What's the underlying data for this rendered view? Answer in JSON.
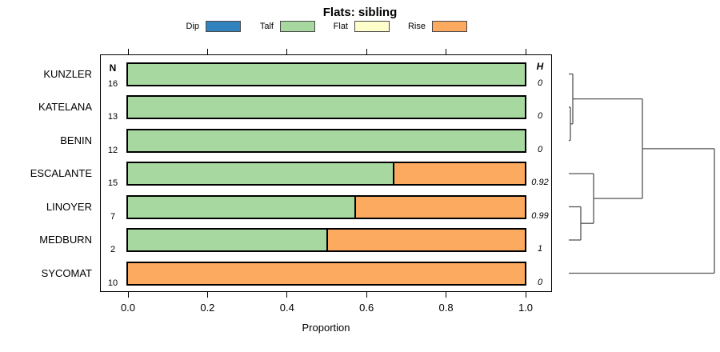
{
  "chart_data": {
    "type": "bar",
    "orientation": "horizontal-stacked",
    "title": "Flats: sibling",
    "xlabel": "Proportion",
    "xlim": [
      0,
      1
    ],
    "xticks": [
      0,
      0.2,
      0.4,
      0.6,
      0.8,
      1.0
    ],
    "xtick_labels": [
      "0.0",
      "0.2",
      "0.4",
      "0.6",
      "0.8",
      "1.0"
    ],
    "grid": false,
    "legend_position": "top",
    "n_header": "N",
    "h_header": "H",
    "categories": [
      "KUNZLER",
      "KATELANA",
      "BENIN",
      "ESCALANTE",
      "LINOYER",
      "MEDBURN",
      "SYCOMAT"
    ],
    "n_values": [
      "16",
      "13",
      "12",
      "15",
      "7",
      "2",
      "10"
    ],
    "h_values": [
      "0",
      "0",
      "0",
      "0.92",
      "0.99",
      "1",
      "0"
    ],
    "series": [
      {
        "name": "Dip",
        "color": "#3182bd",
        "values": [
          0,
          0,
          0,
          0,
          0,
          0,
          0
        ]
      },
      {
        "name": "Talf",
        "color": "#a6d8a0",
        "values": [
          1,
          1,
          1,
          0.667,
          0.571,
          0.5,
          0
        ]
      },
      {
        "name": "Flat",
        "color": "#ffffcc",
        "values": [
          0,
          0,
          0,
          0,
          0,
          0,
          0
        ]
      },
      {
        "name": "Rise",
        "color": "#fbaa60",
        "values": [
          0,
          0,
          0,
          0.333,
          0.429,
          0.5,
          1
        ]
      }
    ],
    "dendrogram": {
      "line_color": "#555555",
      "segments": [
        {
          "x1": 711,
          "y1": 92.5,
          "x2": 716,
          "y2": 92.5
        },
        {
          "x1": 711,
          "y1": 134,
          "x2": 713,
          "y2": 134
        },
        {
          "x1": 711,
          "y1": 175.5,
          "x2": 713,
          "y2": 175.5
        },
        {
          "x1": 713,
          "y1": 134,
          "x2": 713,
          "y2": 175.5
        },
        {
          "x1": 713,
          "y1": 154.8,
          "x2": 716,
          "y2": 154.8
        },
        {
          "x1": 716,
          "y1": 92.5,
          "x2": 716,
          "y2": 154.8
        },
        {
          "x1": 716,
          "y1": 123.6,
          "x2": 803,
          "y2": 123.6
        },
        {
          "x1": 711,
          "y1": 217,
          "x2": 742,
          "y2": 217
        },
        {
          "x1": 711,
          "y1": 258.5,
          "x2": 726,
          "y2": 258.5
        },
        {
          "x1": 711,
          "y1": 300,
          "x2": 726,
          "y2": 300
        },
        {
          "x1": 726,
          "y1": 258.5,
          "x2": 726,
          "y2": 300
        },
        {
          "x1": 726,
          "y1": 279.2,
          "x2": 742,
          "y2": 279.2
        },
        {
          "x1": 742,
          "y1": 217,
          "x2": 742,
          "y2": 279.2
        },
        {
          "x1": 742,
          "y1": 248.1,
          "x2": 803,
          "y2": 248.1
        },
        {
          "x1": 803,
          "y1": 123.6,
          "x2": 803,
          "y2": 248.1
        },
        {
          "x1": 803,
          "y1": 185.9,
          "x2": 893,
          "y2": 185.9
        },
        {
          "x1": 711,
          "y1": 341.5,
          "x2": 893,
          "y2": 341.5
        },
        {
          "x1": 893,
          "y1": 185.9,
          "x2": 893,
          "y2": 341.5
        }
      ]
    }
  }
}
